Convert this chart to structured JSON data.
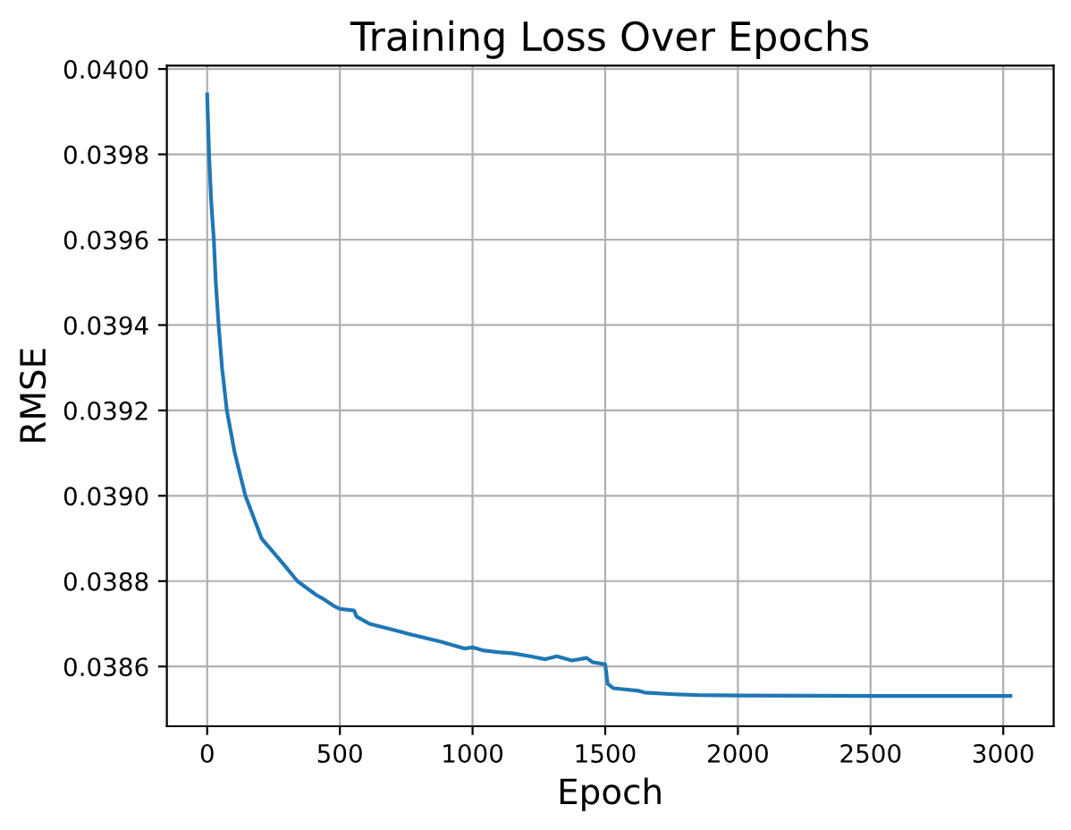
{
  "chart_data": {
    "type": "line",
    "title": "Training Loss Over Epochs",
    "xlabel": "Epoch",
    "ylabel": "RMSE",
    "series": [
      {
        "color": "#1f77b4",
        "x": [
          0,
          7,
          15,
          25,
          32,
          43,
          56,
          74,
          104,
          144,
          205,
          239,
          290,
          340,
          410,
          433,
          480,
          500,
          554,
          563,
          612,
          702,
          769,
          881,
          971,
          1000,
          1038,
          1105,
          1150,
          1217,
          1274,
          1318,
          1374,
          1430,
          1453,
          1500,
          1509,
          1531,
          1627,
          1649,
          1761,
          1850,
          1996,
          2500,
          3027
        ],
        "values": [
          0.03994,
          0.0398,
          0.03969,
          0.0396,
          0.039504,
          0.0394,
          0.0393,
          0.0392,
          0.0391,
          0.039,
          0.0389,
          0.038875,
          0.038838,
          0.0388,
          0.038768,
          0.03876,
          0.038741,
          0.038735,
          0.038731,
          0.038717,
          0.0387,
          0.038686,
          0.038675,
          0.038658,
          0.038642,
          0.038645,
          0.038638,
          0.038633,
          0.038631,
          0.038624,
          0.038617,
          0.038624,
          0.038614,
          0.03862,
          0.03861,
          0.038605,
          0.03856,
          0.038549,
          0.038543,
          0.038539,
          0.038535,
          0.038533,
          0.038532,
          0.038531,
          0.038531
        ]
      }
    ],
    "xlim": [
      -152,
      3190
    ],
    "xticks": [
      0,
      500,
      1000,
      1500,
      2000,
      2500,
      3000
    ],
    "ylim": [
      0.03846,
      0.040008
    ],
    "yticks": [
      {
        "value": 0.0386,
        "label": "0.0386"
      },
      {
        "value": 0.0388,
        "label": "0.0388"
      },
      {
        "value": 0.039,
        "label": "0.0390"
      },
      {
        "value": 0.0392,
        "label": "0.0392"
      },
      {
        "value": 0.0394,
        "label": "0.0394"
      },
      {
        "value": 0.0396,
        "label": "0.0396"
      },
      {
        "value": 0.0398,
        "label": "0.0398"
      },
      {
        "value": 0.04,
        "label": "0.0400"
      }
    ],
    "grid": true,
    "line_style": "solid",
    "marker": "none"
  }
}
